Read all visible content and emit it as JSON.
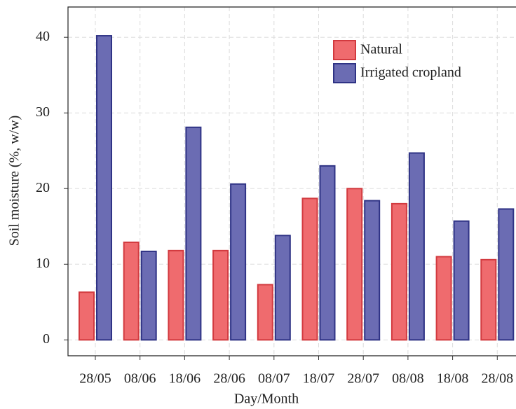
{
  "chart_data": {
    "type": "bar",
    "xlabel": "Day/Month",
    "ylabel": "Soil moisture (%, w/w)",
    "categories": [
      "28/05",
      "08/06",
      "18/06",
      "28/06",
      "08/07",
      "18/07",
      "28/07",
      "08/08",
      "18/08",
      "28/08"
    ],
    "series": [
      {
        "name": "Natural",
        "color": "#ef6b6e",
        "values": [
          6.3,
          12.9,
          11.8,
          11.8,
          7.3,
          18.7,
          20.0,
          18.0,
          11.0,
          10.6
        ]
      },
      {
        "name": "Irrigated cropland",
        "color": "#6b6cb3",
        "values": [
          40.2,
          11.7,
          28.1,
          20.6,
          13.8,
          23.0,
          18.4,
          24.7,
          15.7,
          17.3
        ]
      }
    ],
    "ylim": [
      -2.1,
      44
    ],
    "yticks": [
      0,
      10,
      20,
      30,
      40
    ],
    "grid": true,
    "legend": "upper right"
  }
}
